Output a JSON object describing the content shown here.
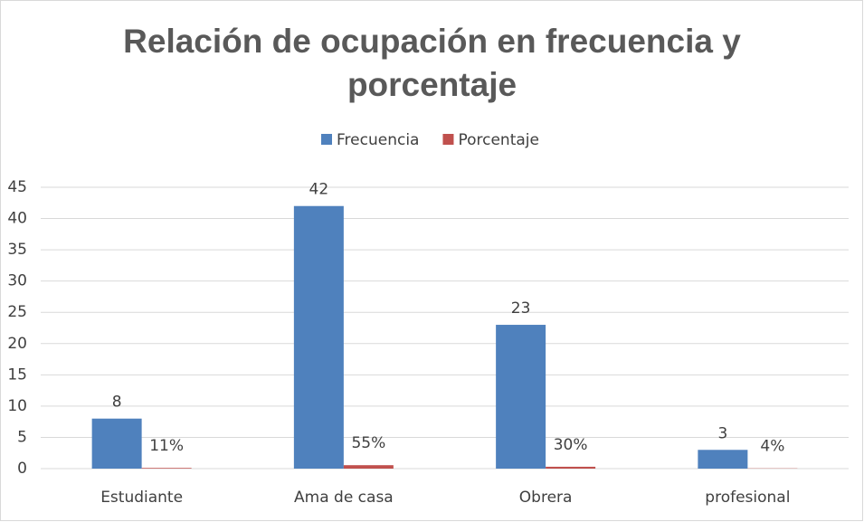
{
  "chart_data": {
    "type": "bar",
    "title": "Relación de ocupación en frecuencia y porcentaje",
    "categories": [
      "Estudiante",
      "Ama de casa",
      "Obrera",
      "profesional"
    ],
    "series": [
      {
        "name": "Frecuencia",
        "color": "#4f81bd",
        "values": [
          8,
          42,
          23,
          3
        ]
      },
      {
        "name": "Porcentaje",
        "color": "#c0504d",
        "values": [
          0.11,
          0.55,
          0.3,
          0.04
        ],
        "value_labels": [
          "11%",
          "55%",
          "30%",
          "4%"
        ]
      }
    ],
    "ylim": [
      0,
      45
    ],
    "yticks": [
      0,
      5,
      10,
      15,
      20,
      25,
      30,
      35,
      40,
      45
    ],
    "grid": true,
    "legend": "top"
  }
}
